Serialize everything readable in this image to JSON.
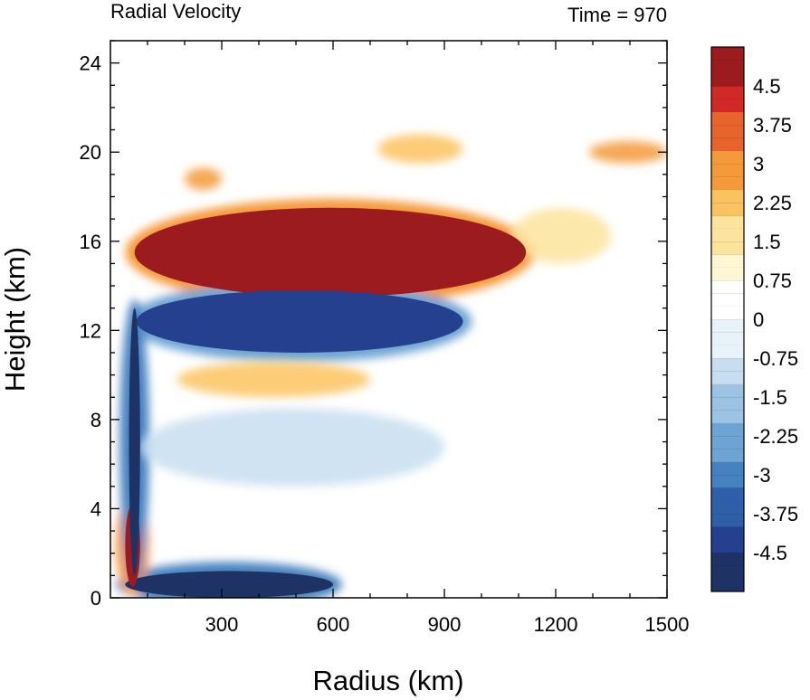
{
  "chart_data": {
    "type": "heatmap",
    "title": "Radial Velocity",
    "subtitle": "Time = 970",
    "xlabel": "Radius (km)",
    "ylabel": "Height (km)",
    "xlim": [
      0,
      1500
    ],
    "ylim": [
      0,
      25
    ],
    "x_ticks": [
      300,
      600,
      900,
      1200,
      1500
    ],
    "y_ticks": [
      0,
      4,
      8,
      12,
      16,
      20,
      24
    ],
    "colorbar": {
      "min": -5.25,
      "max": 5.25,
      "step": 0.25,
      "tick_labels": [
        "4.5",
        "3.75",
        "3",
        "2.25",
        "1.5",
        "0.75",
        "0",
        "-0.75",
        "-1.5",
        "-2.25",
        "-3",
        "-3.75",
        "-4.5"
      ],
      "tick_values": [
        4.5,
        3.75,
        3,
        2.25,
        1.5,
        0.75,
        0,
        -0.75,
        -1.5,
        -2.25,
        -3,
        -3.75,
        -4.5
      ],
      "colors": [
        "#1f3266",
        "#25408f",
        "#2e5fa8",
        "#4682c0",
        "#6ea4d3",
        "#9cc3e4",
        "#c7def0",
        "#e8f2f9",
        "#ffffff",
        "#fff6d4",
        "#fde49d",
        "#fbc35f",
        "#f59a3a",
        "#e8642a",
        "#d1292a",
        "#9b1b1f"
      ]
    },
    "features": [
      {
        "name": "upper outflow jet",
        "x_range": [
          65,
          1120
        ],
        "y_range": [
          13.5,
          17.5
        ],
        "value": 5.5
      },
      {
        "name": "inflow layer below outflow",
        "x_range": [
          70,
          950
        ],
        "y_range": [
          11,
          13.8
        ],
        "value": -4.5
      },
      {
        "name": "mid-level outflow",
        "x_range": [
          180,
          700
        ],
        "y_range": [
          9,
          10.6
        ],
        "value": 2.5
      },
      {
        "name": "boundary-layer inflow",
        "x_range": [
          40,
          600
        ],
        "y_range": [
          0,
          1.2
        ],
        "value": -5.5
      },
      {
        "name": "low-level outflow near center",
        "x_range": [
          40,
          80
        ],
        "y_range": [
          0.5,
          4.2
        ],
        "value": 5.5
      },
      {
        "name": "eyewall inflow column",
        "x_range": [
          50,
          80
        ],
        "y_range": [
          1,
          13
        ],
        "value": -5.5
      },
      {
        "name": "upper outflow patch",
        "x_range": [
          200,
          300
        ],
        "y_range": [
          18.3,
          19.3
        ],
        "value": 3
      },
      {
        "name": "upper outflow patch",
        "x_range": [
          720,
          950
        ],
        "y_range": [
          19.5,
          20.8
        ],
        "value": 2.5
      },
      {
        "name": "upper outflow patch",
        "x_range": [
          1290,
          1500
        ],
        "y_range": [
          19.5,
          20.5
        ],
        "value": 2.8
      },
      {
        "name": "outflow extension",
        "x_range": [
          1080,
          1350
        ],
        "y_range": [
          15,
          17.5
        ],
        "value": 1.8
      },
      {
        "name": "weak mid-level inflow",
        "x_range": [
          80,
          900
        ],
        "y_range": [
          5,
          8.5
        ],
        "value": -1
      }
    ]
  }
}
